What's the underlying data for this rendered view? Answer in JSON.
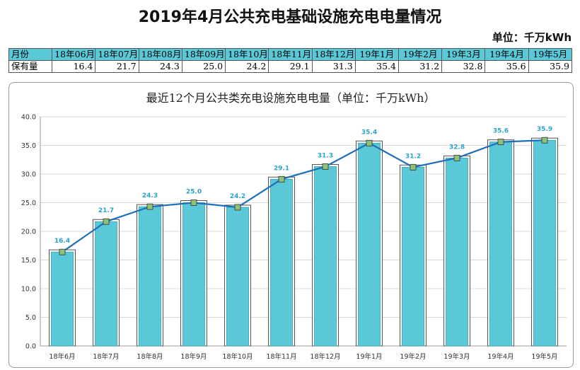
{
  "page": {
    "title": "2019年4月公共充电基础设施充电电量情况",
    "unit": "单位：千万kWh"
  },
  "table": {
    "header_label": "月份",
    "row_label": "保有量",
    "months": [
      "18年06月",
      "18年07月",
      "18年08月",
      "18年09月",
      "18年10月",
      "18年11月",
      "18年12月",
      "19年1月",
      "19年2月",
      "19年3月",
      "19年4月",
      "19年5月"
    ],
    "values": [
      "16.4",
      "21.7",
      "24.3",
      "25.0",
      "24.2",
      "29.1",
      "31.3",
      "35.4",
      "31.2",
      "32.8",
      "35.6",
      "35.9"
    ]
  },
  "chart_data": {
    "type": "bar",
    "title": "最近12个月公共类充电设施充电电量（单位：千万kWh）",
    "categories": [
      "18年6月",
      "18年7月",
      "18年8月",
      "18年9月",
      "18年10月",
      "18年11月",
      "18年12月",
      "19年1月",
      "19年2月",
      "19年3月",
      "19年4月",
      "19年5月"
    ],
    "values": [
      16.4,
      21.7,
      24.3,
      25.0,
      24.2,
      29.1,
      31.3,
      35.4,
      31.2,
      32.8,
      35.6,
      35.9
    ],
    "data_labels": [
      "16.4",
      "21.7",
      "24.3",
      "25.0",
      "24.2",
      "29.1",
      "31.3",
      "35.4",
      "31.2",
      "32.8",
      "35.6",
      "35.9"
    ],
    "overlay_line": true,
    "ylim": [
      0,
      40
    ],
    "yticks": [
      "0.0",
      "5.0",
      "10.0",
      "15.0",
      "20.0",
      "25.0",
      "30.0",
      "35.0",
      "40.0"
    ],
    "grid": true,
    "xlabel": "",
    "ylabel": "",
    "colors": {
      "bar": "#5bc8d8",
      "line": "#1f6fb8",
      "marker": "#8ec27a",
      "label": "#2aa3c8"
    }
  }
}
